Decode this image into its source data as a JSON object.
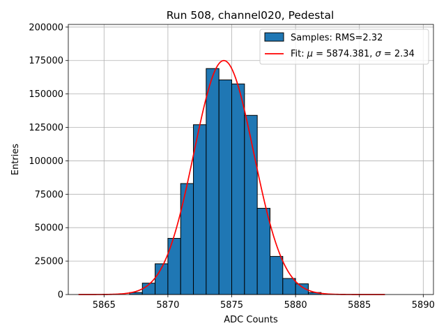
{
  "chart_data": {
    "type": "bar",
    "title": "Run 508, channel020, Pedestal",
    "xlabel": "ADC Counts",
    "ylabel": "Entries",
    "xlim": [
      5862.2,
      5890.8
    ],
    "ylim": [
      0,
      202000
    ],
    "xticks": [
      5865,
      5870,
      5875,
      5880,
      5885,
      5890
    ],
    "yticks": [
      0,
      25000,
      50000,
      75000,
      100000,
      125000,
      150000,
      175000,
      200000
    ],
    "grid": true,
    "legend_position": "upper-right",
    "histogram": {
      "name": "Samples: RMS=2.32",
      "color": "#1f77b4",
      "edgecolor": "#000000",
      "bin_width": 1,
      "bins": [
        {
          "left": 5867,
          "value": 1500
        },
        {
          "left": 5868,
          "value": 8500
        },
        {
          "left": 5869,
          "value": 23000
        },
        {
          "left": 5870,
          "value": 42000
        },
        {
          "left": 5871,
          "value": 83000
        },
        {
          "left": 5872,
          "value": 127000
        },
        {
          "left": 5873,
          "value": 169000
        },
        {
          "left": 5874,
          "value": 160500
        },
        {
          "left": 5875,
          "value": 157500
        },
        {
          "left": 5876,
          "value": 134000
        },
        {
          "left": 5877,
          "value": 64500
        },
        {
          "left": 5878,
          "value": 28500
        },
        {
          "left": 5879,
          "value": 12000
        },
        {
          "left": 5880,
          "value": 8000
        },
        {
          "left": 5881,
          "value": 1500
        }
      ]
    },
    "fit": {
      "name_prefix": "Fit: ",
      "name_suffix": " = 5874.381, ",
      "name_sigma_suffix": " = 2.34",
      "mu_symbol": "μ",
      "sigma_symbol": "σ",
      "color": "#ff0000",
      "mu": 5874.381,
      "sigma": 2.34,
      "amplitude": 175000,
      "x_range": [
        5863,
        5887
      ]
    }
  }
}
